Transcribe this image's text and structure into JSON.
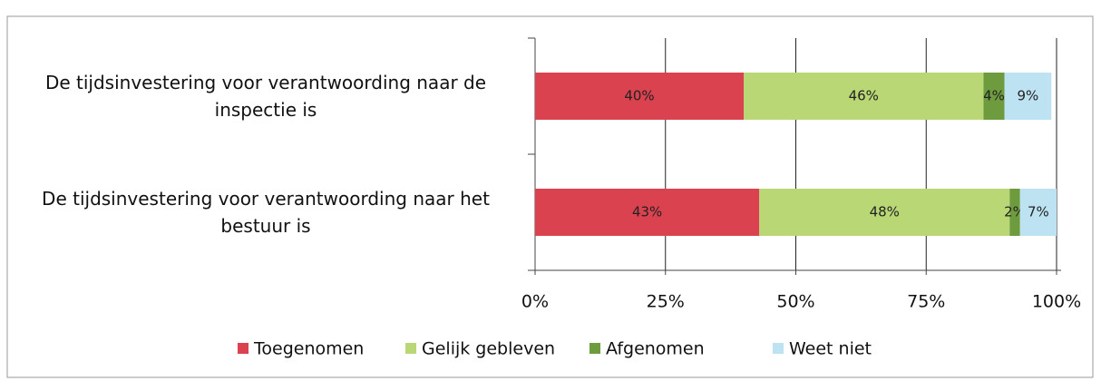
{
  "chart_data": {
    "type": "stacked-bar-horizontal",
    "categories": [
      "De tijdsinvestering voor verantwoording naar de inspectie is",
      "De tijdsinvestering voor verantwoording naar het bestuur is"
    ],
    "series": [
      {
        "name": "Toegenomen",
        "color": "#d9424e",
        "values": [
          40,
          43
        ],
        "value_labels": [
          "40%",
          "43%"
        ]
      },
      {
        "name": "Gelijk gebleven",
        "color": "#b9d875",
        "values": [
          46,
          48
        ],
        "value_labels": [
          "46%",
          "48%"
        ]
      },
      {
        "name": "Afgenomen",
        "color": "#6f9b3f",
        "values": [
          4,
          2
        ],
        "value_labels": [
          "4%",
          "2%"
        ]
      },
      {
        "name": "Weet niet",
        "color": "#bde3f2",
        "values": [
          9,
          7
        ],
        "value_labels": [
          "9%",
          "7%"
        ]
      }
    ],
    "xlim": [
      0,
      100
    ],
    "xticks": [
      {
        "value": 0,
        "label": "0%"
      },
      {
        "value": 25,
        "label": "25%"
      },
      {
        "value": 50,
        "label": "50%"
      },
      {
        "value": 75,
        "label": "75%"
      },
      {
        "value": 100,
        "label": "100%"
      }
    ],
    "grid": true,
    "legend": "bottom"
  }
}
